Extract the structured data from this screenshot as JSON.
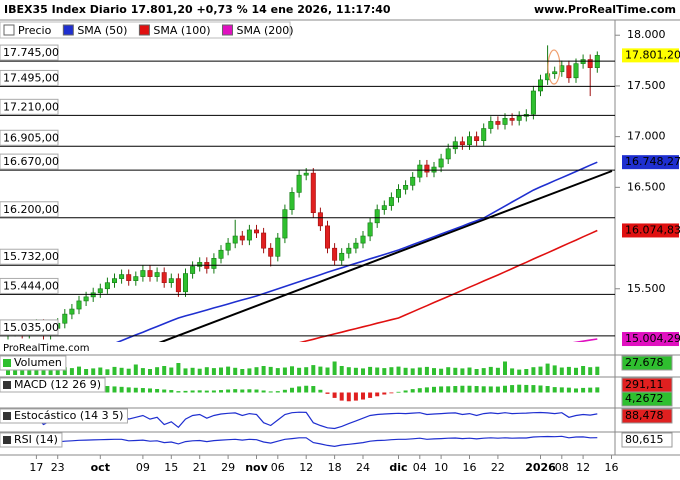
{
  "header": {
    "title": "IBEX35 Index Diario 17.801,20 +0,73 % 14 ene 2026, 11:17:40",
    "site": "www.ProRealTime.com"
  },
  "chart_data": {
    "type": "candlestick",
    "watermark": "ProRealTime.com",
    "categories": [
      null,
      null,
      null,
      null,
      "17",
      null,
      null,
      "23",
      null,
      null,
      null,
      null,
      null,
      "oct",
      null,
      null,
      null,
      null,
      null,
      "09",
      null,
      null,
      null,
      "15",
      null,
      null,
      null,
      "21",
      null,
      null,
      null,
      "29",
      null,
      null,
      null,
      "nov",
      null,
      null,
      "06",
      null,
      null,
      null,
      "12",
      null,
      null,
      null,
      "18",
      null,
      null,
      null,
      "24",
      null,
      null,
      null,
      null,
      "dic",
      null,
      null,
      "04",
      null,
      null,
      "10",
      null,
      null,
      null,
      "16",
      null,
      null,
      null,
      "22",
      null,
      null,
      null,
      null,
      null,
      "2026",
      null,
      null,
      "08",
      null,
      null,
      "12",
      null,
      null,
      null,
      "16"
    ],
    "candles": {
      "name": "Precio",
      "color": "#2fbf2f",
      "down_color": "#e02020",
      "open": [
        15050,
        15080,
        15120,
        15060,
        15100,
        15150,
        15050,
        15110,
        15160,
        15250,
        15300,
        15380,
        15420,
        15460,
        15500,
        15560,
        15600,
        15640,
        15580,
        15620,
        15680,
        15620,
        15660,
        15560,
        15600,
        15470,
        15650,
        15720,
        15760,
        15700,
        15800,
        15880,
        15950,
        16020,
        15980,
        16080,
        16050,
        15900,
        15820,
        16000,
        16280,
        16450,
        16620,
        16640,
        16250,
        16120,
        15900,
        15780,
        15850,
        15900,
        15950,
        16020,
        16150,
        16280,
        16320,
        16400,
        16480,
        16520,
        16600,
        16720,
        16650,
        16700,
        16780,
        16880,
        16950,
        16920,
        17000,
        16960,
        17080,
        17150,
        17120,
        17180,
        17160,
        17200,
        17220,
        17450,
        17560,
        17620,
        17640,
        17700,
        17580,
        17720,
        17760,
        17680,
        null,
        null
      ],
      "high": [
        15130,
        15170,
        15170,
        15150,
        15200,
        15200,
        15160,
        15210,
        15300,
        15350,
        15430,
        15470,
        15510,
        15550,
        15610,
        15650,
        15690,
        15690,
        15670,
        15730,
        15730,
        15710,
        15710,
        15650,
        15650,
        15700,
        15770,
        15810,
        15810,
        15850,
        15930,
        16000,
        16180,
        16070,
        16130,
        16130,
        16100,
        15950,
        16050,
        16330,
        16500,
        16670,
        16690,
        16690,
        16300,
        16170,
        15950,
        15900,
        15950,
        16000,
        16070,
        16200,
        16330,
        16370,
        16450,
        16530,
        16570,
        16650,
        16770,
        16770,
        16750,
        16830,
        16930,
        17000,
        17000,
        17050,
        17050,
        17130,
        17200,
        17200,
        17230,
        17230,
        17250,
        17270,
        17500,
        17610,
        17900,
        17690,
        17750,
        17750,
        17770,
        17810,
        17810,
        17840,
        null,
        null
      ],
      "low": [
        15000,
        15030,
        15010,
        15010,
        15050,
        15000,
        15000,
        15060,
        15110,
        15200,
        15250,
        15330,
        15370,
        15410,
        15450,
        15510,
        15550,
        15530,
        15530,
        15570,
        15570,
        15570,
        15510,
        15510,
        15420,
        15420,
        15600,
        15670,
        15650,
        15650,
        15750,
        15830,
        15900,
        15930,
        15930,
        16000,
        15850,
        15720,
        15770,
        15950,
        16230,
        16400,
        16570,
        16200,
        16070,
        15850,
        15730,
        15730,
        15800,
        15850,
        15900,
        15970,
        16100,
        16230,
        16270,
        16350,
        16430,
        16470,
        16550,
        16600,
        16600,
        16650,
        16730,
        16830,
        16870,
        16870,
        16910,
        16910,
        17030,
        17070,
        17070,
        17110,
        17110,
        17150,
        17170,
        17400,
        17510,
        17570,
        17590,
        17530,
        17530,
        17670,
        17400,
        17630,
        null,
        null
      ],
      "close": [
        15080,
        15120,
        15060,
        15100,
        15150,
        15050,
        15110,
        15160,
        15250,
        15300,
        15380,
        15420,
        15460,
        15500,
        15560,
        15600,
        15640,
        15580,
        15620,
        15680,
        15620,
        15660,
        15560,
        15600,
        15470,
        15650,
        15720,
        15760,
        15700,
        15800,
        15880,
        15950,
        16020,
        15980,
        16080,
        16050,
        15900,
        15820,
        16000,
        16280,
        16450,
        16620,
        16640,
        16250,
        16120,
        15900,
        15780,
        15850,
        15900,
        15950,
        16020,
        16150,
        16280,
        16320,
        16400,
        16480,
        16520,
        16600,
        16720,
        16650,
        16700,
        16780,
        16880,
        16950,
        16920,
        17000,
        16960,
        17080,
        17150,
        17120,
        17180,
        17160,
        17200,
        17220,
        17450,
        17560,
        17620,
        17640,
        17700,
        17580,
        17720,
        17760,
        17680,
        17801.2,
        null,
        null
      ]
    },
    "series": [
      {
        "name": "SMA (50)",
        "color": "#1f2fd0",
        "values": [
          null,
          null,
          null,
          null,
          null,
          null,
          null,
          null,
          null,
          null,
          null,
          null,
          14877,
          14905,
          14933,
          14961,
          14989,
          15017,
          15045,
          15072,
          15100,
          15128,
          15156,
          15184,
          15212,
          15232,
          15251,
          15271,
          15291,
          15311,
          15330,
          15350,
          15370,
          15390,
          15409,
          15429,
          15452,
          15476,
          15499,
          15522,
          15546,
          15569,
          15592,
          15615,
          15639,
          15662,
          15685,
          15707,
          15729,
          15751,
          15773,
          15795,
          15816,
          15838,
          15860,
          15882,
          15908,
          15935,
          15961,
          15987,
          16013,
          16040,
          16066,
          16092,
          16118,
          16145,
          16171,
          16197,
          16236,
          16276,
          16315,
          16355,
          16394,
          16433,
          16473,
          16504,
          16534,
          16565,
          16595,
          16626,
          16656,
          16687,
          16718,
          16748.27,
          null,
          null
        ]
      },
      {
        "name": "SMA (100)",
        "color": "#e01010",
        "values": [
          null,
          null,
          null,
          null,
          null,
          null,
          null,
          null,
          null,
          null,
          null,
          null,
          null,
          null,
          null,
          null,
          null,
          null,
          null,
          null,
          null,
          null,
          null,
          null,
          null,
          null,
          null,
          null,
          null,
          null,
          null,
          null,
          null,
          null,
          null,
          null,
          null,
          14897,
          14915,
          14932,
          14950,
          14967,
          14985,
          15002,
          15020,
          15037,
          15055,
          15072,
          15090,
          15107,
          15125,
          15142,
          15160,
          15177,
          15195,
          15212,
          15242,
          15273,
          15303,
          15333,
          15364,
          15394,
          15424,
          15454,
          15485,
          15515,
          15545,
          15576,
          15606,
          15636,
          15667,
          15699,
          15730,
          15761,
          15793,
          15824,
          15855,
          15886,
          15918,
          15949,
          15980,
          16012,
          16043,
          16074.83,
          null,
          null
        ]
      },
      {
        "name": "SMA (200)",
        "color": "#e010c0",
        "values": [
          null,
          null,
          null,
          null,
          null,
          null,
          null,
          null,
          null,
          null,
          null,
          null,
          null,
          null,
          null,
          null,
          null,
          null,
          null,
          null,
          null,
          null,
          null,
          null,
          null,
          null,
          null,
          null,
          null,
          null,
          null,
          null,
          null,
          null,
          null,
          null,
          null,
          null,
          null,
          null,
          null,
          null,
          null,
          null,
          null,
          null,
          null,
          null,
          null,
          null,
          null,
          null,
          null,
          null,
          null,
          null,
          null,
          null,
          null,
          null,
          null,
          null,
          null,
          null,
          null,
          null,
          null,
          null,
          null,
          null,
          null,
          null,
          null,
          null,
          null,
          null,
          null,
          null,
          14950,
          14961,
          14972,
          14983,
          14994,
          15004.29,
          null,
          null
        ]
      }
    ],
    "ylim": [
      14975,
      18150
    ],
    "yticks": [
      {
        "value": 18000,
        "label": "18.000"
      },
      {
        "value": 17500,
        "label": "17.500"
      },
      {
        "value": 17000,
        "label": "17.000"
      },
      {
        "value": 16500,
        "label": "16.500"
      },
      {
        "value": 15500,
        "label": "15.500"
      }
    ],
    "levels": [
      {
        "value": 17745,
        "label": "17.745,00"
      },
      {
        "value": 17495,
        "label": "17.495,00"
      },
      {
        "value": 17210,
        "label": "17.210,00"
      },
      {
        "value": 16905,
        "label": "16.905,00"
      },
      {
        "value": 16670,
        "label": "16.670,00"
      },
      {
        "value": 16200,
        "label": "16.200,00"
      },
      {
        "value": 15732,
        "label": "15.732,00"
      },
      {
        "value": 15444,
        "label": "15.444,00"
      },
      {
        "value": 15035,
        "label": "15.035,00"
      }
    ],
    "ytags": [
      {
        "value": 17801.2,
        "label": "17.801,20",
        "color": "#ffff00"
      },
      {
        "value": 16748.27,
        "label": "16.748,27",
        "color": "#1f2fd0"
      },
      {
        "value": 16074.83,
        "label": "16.074,83",
        "color": "#e01010"
      },
      {
        "value": 15004.29,
        "label": "15.004,29",
        "color": "#e010c0"
      }
    ],
    "panels": [
      {
        "title": "Volumen",
        "type": "bar",
        "color": "#2fbf2f",
        "ylim": [
          0,
          60000
        ],
        "values": [
          22000,
          18000,
          25000,
          20000,
          30000,
          19000,
          21000,
          24000,
          26000,
          23000,
          28000,
          20000,
          22000,
          25000,
          19000,
          27000,
          24000,
          21000,
          35000,
          23000,
          20000,
          26000,
          30000,
          25000,
          40000,
          22000,
          24000,
          21000,
          26000,
          23000,
          25000,
          28000,
          24000,
          20000,
          22000,
          26000,
          30000,
          27000,
          23000,
          25000,
          29000,
          24000,
          26000,
          33000,
          28000,
          25000,
          45000,
          30000,
          26000,
          24000,
          22000,
          27000,
          25000,
          23000,
          26000,
          28000,
          24000,
          22000,
          25000,
          27000,
          23000,
          21000,
          26000,
          24000,
          22000,
          25000,
          20000,
          23000,
          27000,
          24000,
          45000,
          22000,
          18000,
          20000,
          26000,
          28000,
          38000,
          32000,
          25000,
          27000,
          24000,
          30000,
          26000,
          27678,
          null,
          null
        ],
        "tags": [
          {
            "label": "27.678",
            "color": "#2fbf2f"
          }
        ]
      },
      {
        "title": "MACD (12 26 9)",
        "type": "bar",
        "color": "#2fbf2f",
        "down_color": "#e02020",
        "ylim": [
          -100,
          100
        ],
        "values": [
          20,
          25,
          22,
          24,
          28,
          26,
          30,
          35,
          40,
          45,
          48,
          50,
          52,
          50,
          48,
          45,
          42,
          38,
          35,
          33,
          30,
          26,
          22,
          18,
          10,
          12,
          15,
          16,
          14,
          15,
          18,
          22,
          25,
          22,
          24,
          22,
          15,
          8,
          10,
          20,
          35,
          45,
          50,
          48,
          20,
          -10,
          -40,
          -60,
          -65,
          -60,
          -52,
          -40,
          -28,
          -15,
          -5,
          5,
          15,
          25,
          32,
          38,
          42,
          45,
          46,
          48,
          50,
          50,
          48,
          46,
          45,
          44,
          50,
          55,
          58,
          56,
          55,
          52,
          48,
          40,
          38,
          36,
          30,
          34,
          36,
          38,
          null,
          null
        ],
        "tags": [
          {
            "label": "291,11",
            "color": "#e02020"
          },
          {
            "label": "4,2672",
            "color": "#2fbf2f"
          }
        ]
      },
      {
        "title": "Estocástico (14 3 5)",
        "type": "line",
        "color": "#1f2fd0",
        "ylim": [
          0,
          110
        ],
        "values": [
          50,
          60,
          40,
          55,
          70,
          30,
          50,
          70,
          85,
          90,
          92,
          94,
          95,
          93,
          92,
          90,
          88,
          60,
          70,
          80,
          60,
          70,
          30,
          45,
          15,
          60,
          80,
          85,
          65,
          80,
          88,
          92,
          94,
          80,
          90,
          85,
          40,
          25,
          55,
          85,
          95,
          98,
          97,
          40,
          25,
          12,
          8,
          20,
          35,
          50,
          65,
          80,
          85,
          88,
          90,
          92,
          90,
          93,
          95,
          85,
          88,
          90,
          93,
          94,
          85,
          90,
          80,
          90,
          94,
          90,
          95,
          90,
          92,
          93,
          95,
          96,
          94,
          90,
          95,
          70,
          80,
          85,
          82,
          88.478,
          null,
          null
        ],
        "tags": [
          {
            "label": "88,478",
            "color": "#e02020"
          }
        ]
      },
      {
        "title": "RSI (14)",
        "type": "line",
        "color": "#1f2fd0",
        "ylim": [
          0,
          100
        ],
        "values": [
          55,
          57,
          52,
          54,
          58,
          50,
          55,
          58,
          62,
          64,
          67,
          68,
          69,
          70,
          71,
          72,
          72,
          64,
          66,
          68,
          62,
          64,
          55,
          58,
          48,
          60,
          64,
          66,
          60,
          65,
          68,
          70,
          72,
          68,
          72,
          70,
          58,
          52,
          62,
          72,
          76,
          80,
          80,
          55,
          48,
          40,
          35,
          42,
          46,
          50,
          55,
          62,
          66,
          67,
          70,
          72,
          72,
          75,
          78,
          72,
          74,
          76,
          78,
          79,
          76,
          78,
          74,
          78,
          80,
          78,
          80,
          78,
          79,
          79,
          84,
          86,
          87,
          86,
          88,
          80,
          84,
          85,
          80,
          80.615,
          null,
          null
        ],
        "tags": [
          {
            "label": "80,615",
            "color": "#ffffff"
          }
        ]
      }
    ]
  }
}
